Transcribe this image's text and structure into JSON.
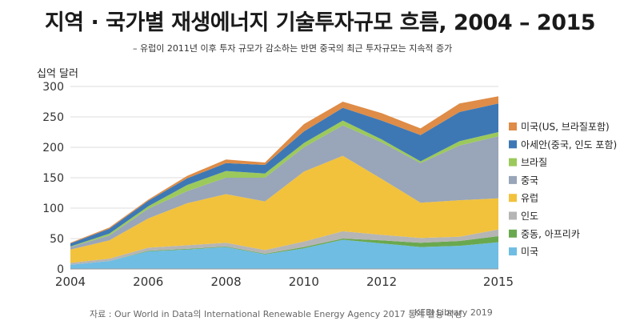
{
  "header": {
    "title": "지역 · 국가별 재생에너지 기술투자규모 흐름, 2004 – 2015",
    "subtitle": "– 유럽이 2011년 이후 투자 규모가 감소하는 반면 중국의 최근 투자규모는 지속적 증가"
  },
  "footer": {
    "source": "자료 : Our World in Data의 International Renewable Energy Agency 2017 통계 활용 작성",
    "credit": "KEEI Library 2019"
  },
  "chart_data": {
    "type": "area",
    "stacked": true,
    "ylabel": "십억 달러",
    "ylim": [
      0,
      300
    ],
    "yticks": [
      0,
      50,
      100,
      150,
      200,
      250,
      300
    ],
    "xlim": [
      2004,
      2015
    ],
    "xticks": [
      2004,
      2006,
      2008,
      2010,
      2012,
      2015
    ],
    "xtick_labels": [
      "2004",
      "2006",
      "2008",
      "2010",
      "2012",
      "2015"
    ],
    "grid": "horizontal",
    "legend_position": "right",
    "x": [
      2004,
      2005,
      2006,
      2007,
      2008,
      2009,
      2010,
      2011,
      2012,
      2013,
      2014,
      2015
    ],
    "series": [
      {
        "name": "미국",
        "color": "#6fbde3",
        "values": [
          7,
          13,
          29,
          32,
          36,
          24,
          34,
          48,
          42,
          36,
          38,
          44
        ]
      },
      {
        "name": "중동, 아프리카",
        "color": "#6aa84f",
        "values": [
          0,
          0,
          1,
          1,
          1,
          1,
          2,
          2,
          5,
          7,
          8,
          10
        ]
      },
      {
        "name": "인도",
        "color": "#b5b5b5",
        "values": [
          3,
          4,
          5,
          6,
          6,
          6,
          9,
          12,
          9,
          8,
          7,
          11
        ]
      },
      {
        "name": "유럽",
        "color": "#f2c23c",
        "values": [
          22,
          30,
          48,
          69,
          80,
          80,
          115,
          124,
          92,
          58,
          60,
          51
        ]
      },
      {
        "name": "중국",
        "color": "#99a5b8",
        "values": [
          4,
          8,
          16,
          20,
          27,
          39,
          40,
          50,
          60,
          65,
          90,
          102
        ]
      },
      {
        "name": "브라질",
        "color": "#9cc95b",
        "values": [
          1,
          3,
          4,
          10,
          11,
          7,
          7,
          8,
          5,
          3,
          7,
          7
        ]
      },
      {
        "name": "아세안(중국, 인도 포함)",
        "color": "#3d78b5",
        "values": [
          5,
          8,
          9,
          11,
          13,
          14,
          19,
          21,
          31,
          43,
          48,
          47
        ]
      },
      {
        "name": "미국(US, 브라질포함)",
        "color": "#de8c47",
        "values": [
          1,
          2,
          2,
          4,
          6,
          4,
          12,
          10,
          12,
          11,
          14,
          12
        ]
      }
    ],
    "legend_order": [
      "미국(US, 브라질포함)",
      "아세안(중국, 인도 포함)",
      "브라질",
      "중국",
      "유럽",
      "인도",
      "중동, 아프리카",
      "미국"
    ]
  }
}
